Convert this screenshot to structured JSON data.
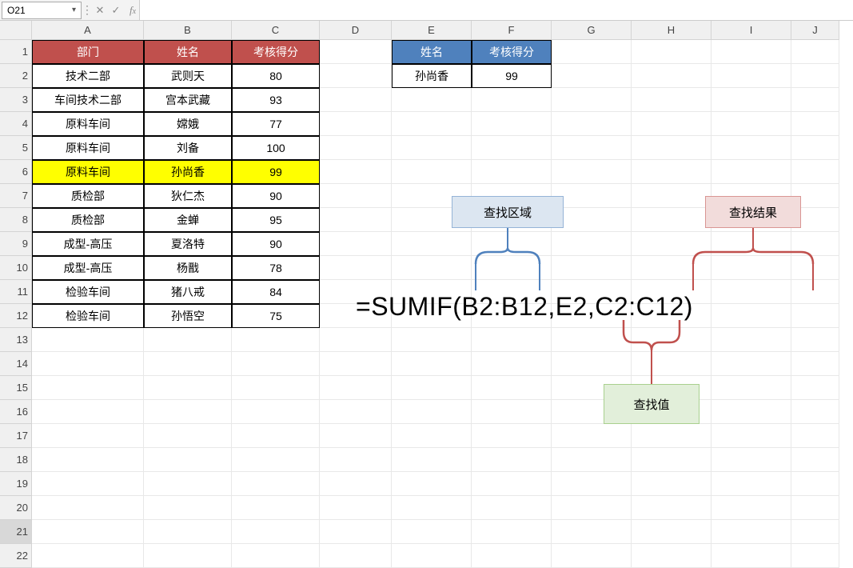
{
  "nameBox": "O21",
  "formulaBar": "",
  "columns": [
    "A",
    "B",
    "C",
    "D",
    "E",
    "F",
    "G",
    "H",
    "I",
    "J"
  ],
  "rowCount": 22,
  "mainTable": {
    "headers": [
      "部门",
      "姓名",
      "考核得分"
    ],
    "header_bg": "#c0504d",
    "header_fg": "#ffffff",
    "rows": [
      [
        "技术二部",
        "武则天",
        "80"
      ],
      [
        "车间技术二部",
        "宫本武藏",
        "93"
      ],
      [
        "原料车间",
        "嫦娥",
        "77"
      ],
      [
        "原料车间",
        "刘备",
        "100"
      ],
      [
        "原料车间",
        "孙尚香",
        "99"
      ],
      [
        "质检部",
        "狄仁杰",
        "90"
      ],
      [
        "质检部",
        "金蝉",
        "95"
      ],
      [
        "成型-高压",
        "夏洛特",
        "90"
      ],
      [
        "成型-高压",
        "杨戬",
        "78"
      ],
      [
        "检验车间",
        "猪八戒",
        "84"
      ],
      [
        "检验车间",
        "孙悟空",
        "75"
      ]
    ],
    "highlight_row_index": 4,
    "highlight_bg": "#ffff00"
  },
  "lookupTable": {
    "headers": [
      "姓名",
      "考核得分"
    ],
    "header_bg": "#4f81bd",
    "header_fg": "#ffffff",
    "row": [
      "孙尚香",
      "99"
    ]
  },
  "formula": "=SUMIF(B2:B12,E2,C2:C12)",
  "annotations": {
    "lookupRange": "查找区域",
    "lookupValue": "查找值",
    "lookupResult": "查找结果"
  },
  "colors": {
    "brace_blue": "#4f81bd",
    "brace_red": "#c0504d"
  },
  "activeCell": {
    "row": 21,
    "col": "O"
  }
}
